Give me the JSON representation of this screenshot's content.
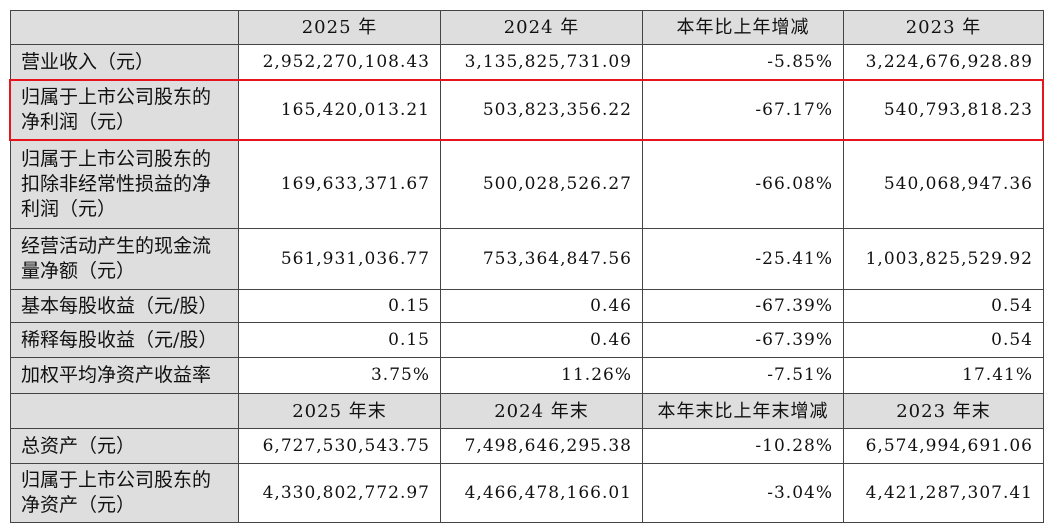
{
  "table": {
    "header": [
      "2025 年",
      "2024 年",
      "本年比上年增减",
      "2023 年"
    ],
    "rows": [
      {
        "label": "营业收入（元）",
        "values": [
          "2,952,270,108.43",
          "3,135,825,731.09",
          "-5.85%",
          "3,224,676,928.89"
        ]
      },
      {
        "label": "归属于上市公司股东的净利润（元）",
        "values": [
          "165,420,013.21",
          "503,823,356.22",
          "-67.17%",
          "540,793,818.23"
        ]
      },
      {
        "label": "归属于上市公司股东的扣除非经常性损益的净利润（元）",
        "values": [
          "169,633,371.67",
          "500,028,526.27",
          "-66.08%",
          "540,068,947.36"
        ]
      },
      {
        "label": "经营活动产生的现金流量净额（元）",
        "values": [
          "561,931,036.77",
          "753,364,847.56",
          "-25.41%",
          "1,003,825,529.92"
        ]
      },
      {
        "label": "基本每股收益（元/股）",
        "values": [
          "0.15",
          "0.46",
          "-67.39%",
          "0.54"
        ]
      },
      {
        "label": "稀释每股收益（元/股）",
        "values": [
          "0.15",
          "0.46",
          "-67.39%",
          "0.54"
        ]
      },
      {
        "label": "加权平均净资产收益率",
        "values": [
          "3.75%",
          "11.26%",
          "-7.51%",
          "17.41%"
        ]
      }
    ],
    "header2": [
      "2025 年末",
      "2024 年末",
      "本年末比上年末增减",
      "2023 年末"
    ],
    "rows2": [
      {
        "label": "总资产（元）",
        "values": [
          "6,727,530,543.75",
          "7,498,646,295.38",
          "-10.28%",
          "6,574,994,691.06"
        ]
      },
      {
        "label": "归属于上市公司股东的净资产（元）",
        "values": [
          "4,330,802,772.97",
          "4,466,478,166.01",
          "-3.04%",
          "4,421,287,307.41"
        ]
      }
    ]
  }
}
